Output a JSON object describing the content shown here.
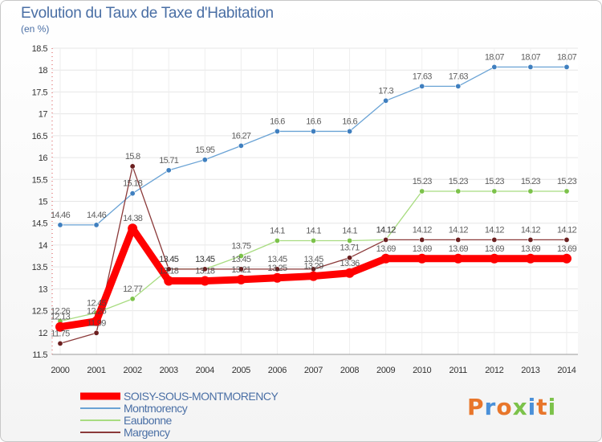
{
  "chart_data": {
    "type": "line",
    "title": "Evolution du Taux de Taxe d'Habitation",
    "ylabel": "(en %)",
    "xlabel": "",
    "ylim": [
      11.5,
      18.5
    ],
    "yticks": [
      "11.5",
      "12",
      "12.5",
      "13",
      "13.5",
      "14",
      "14.5",
      "15",
      "15.5",
      "16",
      "16.5",
      "17",
      "17.5",
      "18",
      "18.5"
    ],
    "categories": [
      "2000",
      "2001",
      "2002",
      "2003",
      "2004",
      "2005",
      "2006",
      "2007",
      "2008",
      "2009",
      "2010",
      "2011",
      "2012",
      "2013",
      "2014"
    ],
    "series": [
      {
        "name": "Montmorency",
        "color": "#6aa3d5",
        "marker": "#3f7fbf",
        "values": [
          14.46,
          14.46,
          15.18,
          15.71,
          15.95,
          16.27,
          16.6,
          16.6,
          16.6,
          17.3,
          17.63,
          17.63,
          18.07,
          18.07,
          18.07
        ],
        "labels": [
          "14.46",
          "14.46",
          "15.18",
          "15.71",
          "15.95",
          "16.27",
          "16.6",
          "16.6",
          "16.6",
          "17.3",
          "17.63",
          "17.63",
          "18.07",
          "18.07",
          "18.07"
        ]
      },
      {
        "name": "Eaubonne",
        "color": "#a8dc80",
        "marker": "#7cc24a",
        "values": [
          12.26,
          12.45,
          12.77,
          13.45,
          13.45,
          13.75,
          14.1,
          14.1,
          14.1,
          14.12,
          15.23,
          15.23,
          15.23,
          15.23,
          15.23
        ],
        "labels": [
          "12.26",
          "12.45",
          "12.77",
          "13.45",
          "13.45",
          "13.75",
          "14.1",
          "14.1",
          "14.1",
          "14.12",
          "15.23",
          "15.23",
          "15.23",
          "15.23",
          "15.23"
        ]
      },
      {
        "name": "Margency",
        "color": "#8b3a3a",
        "marker": "#6b1f1f",
        "values": [
          11.75,
          11.99,
          15.8,
          13.45,
          13.45,
          13.45,
          13.45,
          13.45,
          13.71,
          14.12,
          14.12,
          14.12,
          14.12,
          14.12,
          14.12
        ],
        "labels": [
          "11.75",
          "11.99",
          "15.8",
          "13.45",
          "13.45",
          "13.45",
          "13.45",
          "13.45",
          "13.71",
          "14.12",
          "14.12",
          "14.12",
          "14.12",
          "14.12",
          "14.12"
        ]
      },
      {
        "name": "SOISY-SOUS-MONTMORENCY",
        "color": "#ff0000",
        "marker": "#ff0000",
        "thick": true,
        "values": [
          12.13,
          12.26,
          14.38,
          13.18,
          13.18,
          13.21,
          13.25,
          13.29,
          13.36,
          13.69,
          13.69,
          13.69,
          13.69,
          13.69,
          13.69
        ],
        "labels": [
          "12.13",
          "12.26",
          "14.38",
          "13.18",
          "13.18",
          "13.21",
          "13.25",
          "13.29",
          "13.36",
          "13.69",
          "13.69",
          "13.69",
          "13.69",
          "13.69",
          "13.69"
        ]
      }
    ],
    "legend": [
      {
        "name": "SOISY-SOUS-MONTMORENCY",
        "color": "#ff0000",
        "thick": true
      },
      {
        "name": "Montmorency",
        "color": "#6aa3d5",
        "thick": false
      },
      {
        "name": "Eaubonne",
        "color": "#a8dc80",
        "thick": false
      },
      {
        "name": "Margency",
        "color": "#8b3a3a",
        "thick": false
      }
    ],
    "legend_position": "bottom-left"
  },
  "brand": {
    "letters": [
      "P",
      "r",
      "o",
      "x",
      "i",
      "t",
      "i"
    ],
    "colors": [
      "#e8762b",
      "#4a90d9",
      "#e8762b",
      "#7cc24a",
      "#4a90d9",
      "#e8762b",
      "#7cc24a"
    ]
  }
}
